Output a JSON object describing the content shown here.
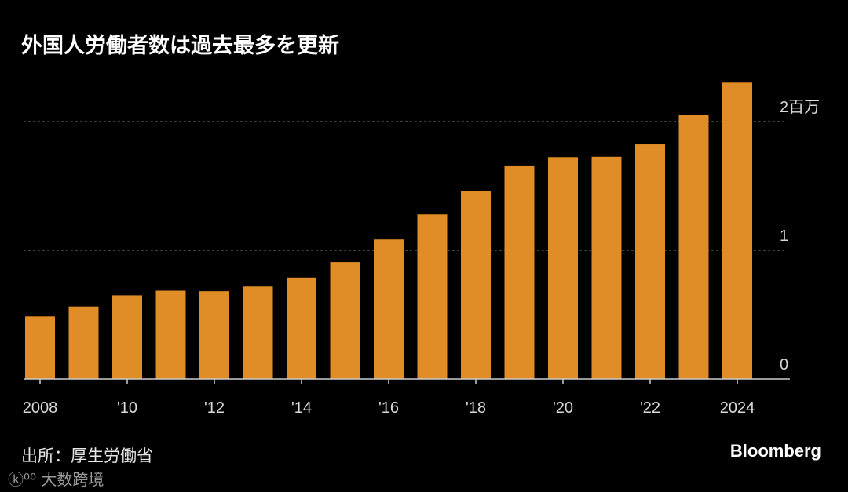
{
  "title": "外国人労働者数は過去最多を更新",
  "source": "出所：厚生労働省",
  "brand": "Bloomberg",
  "watermark": "大数跨境",
  "colors": {
    "bar": "#e08c27",
    "background": "#000000",
    "grid": "#777777"
  },
  "chart_data": {
    "type": "bar",
    "title": "外国人労働者数は過去最多を更新",
    "categories": [
      "2008",
      "2009",
      "2010",
      "2011",
      "2012",
      "2013",
      "2014",
      "2015",
      "2016",
      "2017",
      "2018",
      "2019",
      "2020",
      "2021",
      "2022",
      "2023",
      "2024"
    ],
    "values": [
      0.486,
      0.563,
      0.65,
      0.686,
      0.682,
      0.718,
      0.788,
      0.908,
      1.084,
      1.279,
      1.46,
      1.659,
      1.724,
      1.727,
      1.823,
      2.049,
      2.303
    ],
    "x_tick_labels": [
      "2008",
      "'10",
      "'12",
      "'14",
      "'16",
      "'18",
      "'20",
      "'22",
      "2024"
    ],
    "x_tick_categories": [
      "2008",
      "2010",
      "2012",
      "2014",
      "2016",
      "2018",
      "2020",
      "2022",
      "2024"
    ],
    "y_ticks": [
      0,
      1,
      2
    ],
    "y_tick_labels": [
      "0",
      "1",
      "2百万"
    ],
    "ylim": [
      0,
      2.3
    ],
    "y_axis_side": "right",
    "grid": true,
    "xlabel": "",
    "ylabel": ""
  }
}
